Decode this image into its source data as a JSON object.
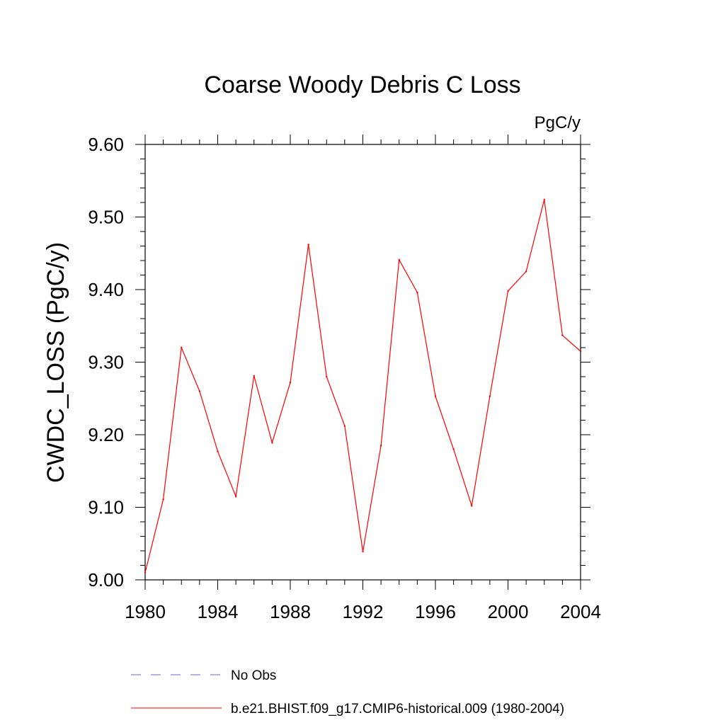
{
  "chart_data": {
    "type": "line",
    "title": "Coarse Woody Debris C Loss",
    "units": "PgC/y",
    "ylabel": "CWDC_LOSS  (PgC/y)",
    "xlabel": "",
    "xlim": [
      1980,
      2004
    ],
    "ylim": [
      9.0,
      9.6
    ],
    "grid": false,
    "xticks": [
      "1980",
      "1984",
      "1988",
      "1992",
      "1996",
      "2000",
      "2004"
    ],
    "yticks": [
      "9.00",
      "9.10",
      "9.20",
      "9.30",
      "9.40",
      "9.50",
      "9.60"
    ],
    "x": [
      1980,
      1981,
      1982,
      1983,
      1984,
      1985,
      1986,
      1987,
      1988,
      1989,
      1990,
      1991,
      1992,
      1993,
      1994,
      1995,
      1996,
      1997,
      1998,
      1999,
      2000,
      2001,
      2002,
      2003,
      2004
    ],
    "series": [
      {
        "name": "b.e21.BHIST.f09_g17.CMIP6-historical.009 (1980-2004)",
        "color": "#ff0000",
        "values": [
          9.01,
          9.111,
          9.32,
          9.26,
          9.177,
          9.115,
          9.281,
          9.189,
          9.272,
          9.462,
          9.28,
          9.212,
          9.039,
          9.185,
          9.441,
          9.396,
          9.253,
          9.18,
          9.102,
          9.253,
          9.398,
          9.425,
          9.524,
          9.337,
          9.315
        ]
      }
    ],
    "legend": {
      "position": "bottom",
      "entries": [
        {
          "label": "No Obs",
          "style": "dashed",
          "color": "#6a6ad0"
        },
        {
          "label": "b.e21.BHIST.f09_g17.CMIP6-historical.009 (1980-2004)",
          "style": "solid",
          "color": "#ff0000"
        }
      ]
    }
  }
}
